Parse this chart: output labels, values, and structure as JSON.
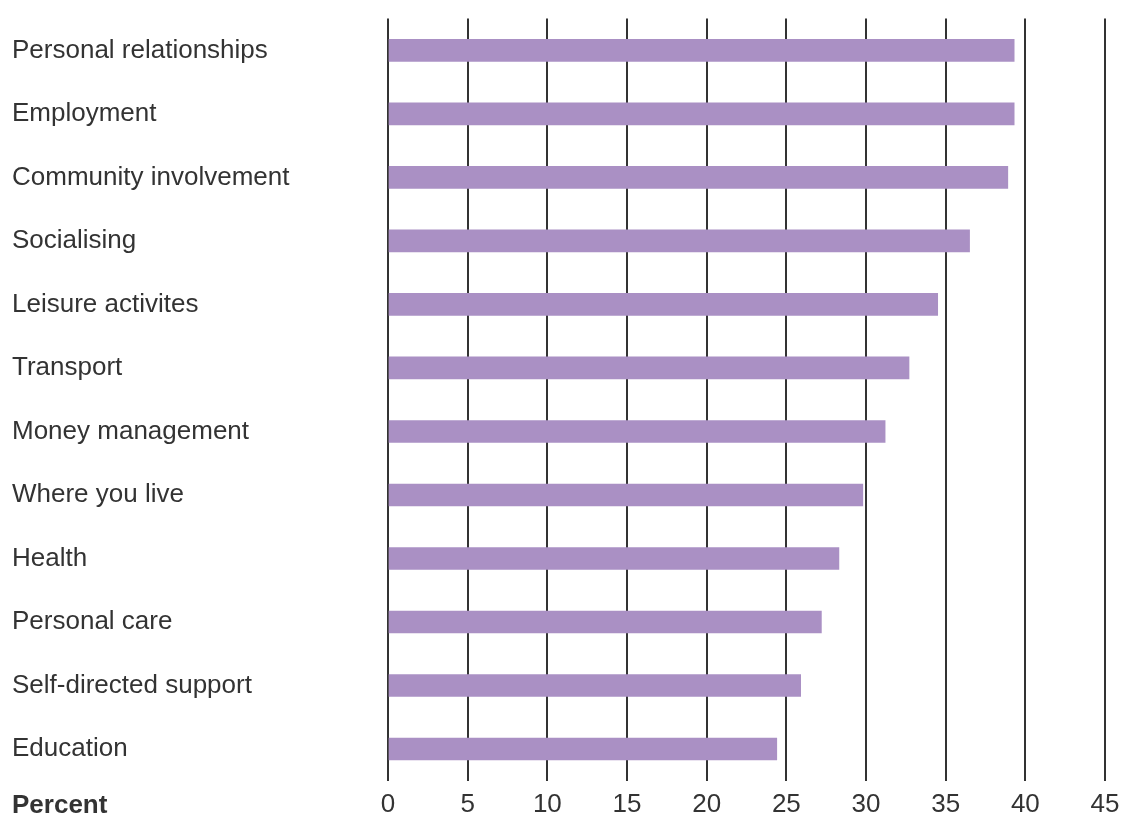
{
  "chart_data": {
    "type": "bar",
    "orientation": "horizontal",
    "xlabel": "Percent",
    "categories": [
      "Personal relationships",
      "Employment",
      "Community involvement",
      "Socialising",
      "Leisure activites",
      "Transport",
      "Money management",
      "Where you live",
      "Health",
      "Personal care",
      "Self-directed support",
      "Education"
    ],
    "values": [
      39.3,
      39.3,
      38.9,
      36.5,
      34.5,
      32.7,
      31.2,
      29.8,
      28.3,
      27.2,
      25.9,
      24.4
    ],
    "color": "#aa90c4",
    "xlim": [
      0,
      45
    ],
    "xticks": [
      0,
      5,
      10,
      15,
      20,
      25,
      30,
      35,
      40,
      45
    ],
    "grid": "x",
    "legend": false
  }
}
